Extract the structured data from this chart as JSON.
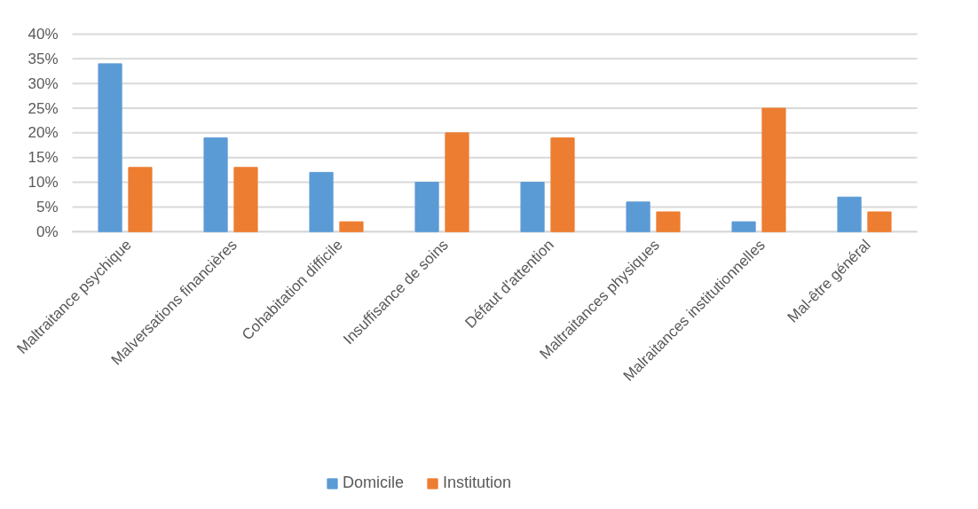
{
  "chart_data": {
    "type": "bar",
    "categories": [
      "Maltraitance psychique",
      "Malversations financières",
      "Cohabitation difficile",
      "Insuffisance de soins",
      "Défaut d'attention",
      "Maltraitances physiques",
      "Malraitances institutionnelles",
      "Mal-être général"
    ],
    "series": [
      {
        "name": "Domicile",
        "color": "#5b9bd5",
        "values": [
          34,
          19,
          12,
          10,
          10,
          6,
          2,
          7
        ]
      },
      {
        "name": "Institution",
        "color": "#ed7d31",
        "values": [
          13,
          13,
          2,
          20,
          19,
          4,
          25,
          4
        ]
      }
    ],
    "ylim": [
      0,
      40
    ],
    "yticks": [
      {
        "value": 0,
        "label": "0%"
      },
      {
        "value": 5,
        "label": "5%"
      },
      {
        "value": 10,
        "label": "10%"
      },
      {
        "value": 15,
        "label": "15%"
      },
      {
        "value": 20,
        "label": "20%"
      },
      {
        "value": 25,
        "label": "25%"
      },
      {
        "value": 30,
        "label": "30%"
      },
      {
        "value": 35,
        "label": "35%"
      },
      {
        "value": 40,
        "label": "40%"
      }
    ],
    "grid": "y",
    "legend": "bottom"
  }
}
